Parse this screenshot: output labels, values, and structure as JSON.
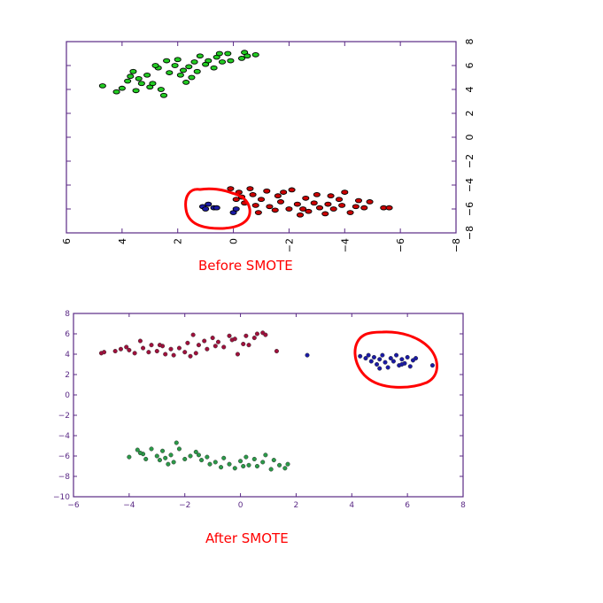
{
  "chart_data": [
    {
      "type": "scatter",
      "orientation": "rotated-90",
      "caption": "Before SMOTE",
      "title": "",
      "xlabel": "",
      "ylabel": "",
      "xlim": [
        6,
        -8
      ],
      "ylim": [
        -8,
        8
      ],
      "xticks": [
        6,
        4,
        2,
        0,
        -2,
        -4,
        -6,
        -8
      ],
      "yticks": [
        8,
        6,
        4,
        2,
        0,
        -2,
        -4,
        -6,
        -8
      ],
      "xtick_labels": [
        "6",
        "4",
        "2",
        "0",
        "−2",
        "−4",
        "−6",
        "−8"
      ],
      "ytick_labels": [
        "8",
        "6",
        "4",
        "2",
        "0",
        "−2",
        "−4",
        "−6",
        "−8"
      ],
      "grid": false,
      "axis_color": "#5b2a86",
      "series": [
        {
          "color": "#22cc22",
          "marker": "ellipse",
          "points": [
            [
              4.7,
              4.3
            ],
            [
              4.2,
              3.8
            ],
            [
              4.0,
              4.1
            ],
            [
              3.8,
              4.7
            ],
            [
              3.7,
              5.1
            ],
            [
              3.6,
              5.5
            ],
            [
              3.5,
              3.9
            ],
            [
              3.3,
              4.5
            ],
            [
              3.1,
              5.2
            ],
            [
              3.0,
              4.2
            ],
            [
              2.9,
              4.5
            ],
            [
              2.7,
              5.8
            ],
            [
              2.6,
              4.0
            ],
            [
              2.4,
              6.4
            ],
            [
              2.3,
              5.4
            ],
            [
              2.1,
              6.0
            ],
            [
              2.0,
              6.5
            ],
            [
              1.9,
              5.2
            ],
            [
              1.8,
              5.6
            ],
            [
              1.7,
              4.6
            ],
            [
              1.6,
              5.9
            ],
            [
              1.4,
              6.3
            ],
            [
              1.3,
              5.5
            ],
            [
              1.2,
              6.8
            ],
            [
              1.0,
              6.1
            ],
            [
              0.9,
              6.4
            ],
            [
              0.7,
              5.8
            ],
            [
              0.6,
              6.7
            ],
            [
              0.4,
              6.3
            ],
            [
              0.2,
              7.0
            ],
            [
              0.1,
              6.4
            ],
            [
              -0.3,
              6.6
            ],
            [
              -0.4,
              7.1
            ],
            [
              -0.5,
              6.8
            ],
            [
              -0.8,
              6.9
            ],
            [
              2.8,
              6.0
            ],
            [
              3.4,
              4.9
            ],
            [
              2.5,
              3.5
            ],
            [
              1.5,
              5.0
            ],
            [
              0.5,
              7.0
            ]
          ]
        },
        {
          "color": "#cc0000",
          "marker": "ellipse",
          "points": [
            [
              0.1,
              -4.3
            ],
            [
              -0.1,
              -5.2
            ],
            [
              -0.2,
              -4.6
            ],
            [
              -0.4,
              -5.5
            ],
            [
              -0.6,
              -4.3
            ],
            [
              -0.7,
              -4.8
            ],
            [
              -0.9,
              -6.3
            ],
            [
              -1.0,
              -5.2
            ],
            [
              -1.2,
              -4.5
            ],
            [
              -1.3,
              -5.8
            ],
            [
              -1.5,
              -6.1
            ],
            [
              -1.7,
              -5.4
            ],
            [
              -1.8,
              -4.6
            ],
            [
              -2.0,
              -6.0
            ],
            [
              -2.1,
              -4.4
            ],
            [
              -2.3,
              -5.6
            ],
            [
              -2.4,
              -6.5
            ],
            [
              -2.6,
              -5.1
            ],
            [
              -2.7,
              -6.2
            ],
            [
              -2.9,
              -5.5
            ],
            [
              -3.0,
              -4.8
            ],
            [
              -3.1,
              -5.9
            ],
            [
              -3.3,
              -6.4
            ],
            [
              -3.4,
              -5.6
            ],
            [
              -3.6,
              -6.0
            ],
            [
              -3.8,
              -5.2
            ],
            [
              -3.9,
              -5.7
            ],
            [
              -4.0,
              -4.6
            ],
            [
              -4.2,
              -6.3
            ],
            [
              -4.4,
              -5.8
            ],
            [
              -4.5,
              -5.3
            ],
            [
              -4.7,
              -5.9
            ],
            [
              -4.9,
              -5.4
            ],
            [
              -5.4,
              -5.9
            ],
            [
              -5.6,
              -5.9
            ],
            [
              -0.3,
              -5.0
            ],
            [
              -1.6,
              -4.9
            ],
            [
              -3.5,
              -4.9
            ],
            [
              -2.5,
              -6.0
            ],
            [
              -0.8,
              -5.7
            ]
          ]
        },
        {
          "color": "#1a1aa6",
          "marker": "ellipse",
          "points": [
            [
              1.1,
              -5.8
            ],
            [
              1.0,
              -6.0
            ],
            [
              0.9,
              -5.6
            ],
            [
              0.7,
              -5.9
            ],
            [
              0.6,
              -5.9
            ],
            [
              0.0,
              -6.3
            ],
            [
              -0.1,
              -6.0
            ]
          ]
        }
      ],
      "annotations": [
        {
          "type": "freehand-loop",
          "color": "#ff0000",
          "encloses": "blue series"
        }
      ]
    },
    {
      "type": "scatter",
      "caption": "After SMOTE",
      "title": "",
      "xlabel": "",
      "ylabel": "",
      "xlim": [
        -6,
        8
      ],
      "ylim": [
        -10,
        8
      ],
      "xticks": [
        -6,
        -4,
        -2,
        0,
        2,
        4,
        6,
        8
      ],
      "yticks": [
        -10,
        -8,
        -6,
        -4,
        -2,
        0,
        2,
        4,
        6,
        8
      ],
      "xtick_labels": [
        "−6",
        "−4",
        "−2",
        "0",
        "2",
        "4",
        "6",
        "8"
      ],
      "ytick_labels": [
        "−10",
        "−8",
        "−6",
        "−4",
        "−2",
        "0",
        "2",
        "4",
        "6",
        "8"
      ],
      "grid": false,
      "axis_color": "#5b2a86",
      "series": [
        {
          "color": "#a0103c",
          "marker": "circle",
          "points": [
            [
              -5.0,
              4.1
            ],
            [
              -4.9,
              4.2
            ],
            [
              -4.5,
              4.3
            ],
            [
              -4.3,
              4.5
            ],
            [
              -4.1,
              4.7
            ],
            [
              -4.0,
              4.4
            ],
            [
              -3.8,
              4.1
            ],
            [
              -3.6,
              5.3
            ],
            [
              -3.5,
              4.6
            ],
            [
              -3.3,
              4.2
            ],
            [
              -3.2,
              4.9
            ],
            [
              -3.0,
              4.3
            ],
            [
              -2.8,
              4.8
            ],
            [
              -2.7,
              4.0
            ],
            [
              -2.5,
              4.5
            ],
            [
              -2.4,
              3.9
            ],
            [
              -2.2,
              4.6
            ],
            [
              -2.0,
              4.2
            ],
            [
              -1.9,
              5.1
            ],
            [
              -1.8,
              3.8
            ],
            [
              -1.7,
              5.9
            ],
            [
              -1.5,
              4.9
            ],
            [
              -1.3,
              5.3
            ],
            [
              -1.2,
              4.5
            ],
            [
              -1.0,
              5.6
            ],
            [
              -0.9,
              4.8
            ],
            [
              -0.8,
              5.2
            ],
            [
              -0.6,
              4.7
            ],
            [
              -0.4,
              5.8
            ],
            [
              -0.3,
              5.4
            ],
            [
              -0.2,
              5.5
            ],
            [
              -0.1,
              4.0
            ],
            [
              0.1,
              5.0
            ],
            [
              0.2,
              5.8
            ],
            [
              0.3,
              4.9
            ],
            [
              0.5,
              5.6
            ],
            [
              0.6,
              6.0
            ],
            [
              0.8,
              6.1
            ],
            [
              0.9,
              5.9
            ],
            [
              1.3,
              4.3
            ],
            [
              -2.9,
              4.9
            ],
            [
              -1.6,
              4.1
            ]
          ]
        },
        {
          "color": "#2a9a48",
          "marker": "circle",
          "points": [
            [
              -4.0,
              -6.1
            ],
            [
              -3.7,
              -5.4
            ],
            [
              -3.5,
              -5.8
            ],
            [
              -3.4,
              -6.3
            ],
            [
              -3.2,
              -5.3
            ],
            [
              -3.0,
              -6.0
            ],
            [
              -2.9,
              -6.4
            ],
            [
              -2.8,
              -5.5
            ],
            [
              -2.6,
              -6.8
            ],
            [
              -2.5,
              -5.9
            ],
            [
              -2.4,
              -6.6
            ],
            [
              -2.3,
              -4.7
            ],
            [
              -2.2,
              -5.3
            ],
            [
              -2.0,
              -6.3
            ],
            [
              -1.8,
              -6.0
            ],
            [
              -1.6,
              -5.6
            ],
            [
              -1.4,
              -6.4
            ],
            [
              -1.2,
              -6.1
            ],
            [
              -1.1,
              -6.8
            ],
            [
              -0.9,
              -6.6
            ],
            [
              -0.7,
              -7.1
            ],
            [
              -0.6,
              -6.2
            ],
            [
              -0.4,
              -6.8
            ],
            [
              -0.2,
              -7.2
            ],
            [
              0.0,
              -6.5
            ],
            [
              0.2,
              -6.1
            ],
            [
              0.3,
              -6.9
            ],
            [
              0.5,
              -6.3
            ],
            [
              0.6,
              -7.0
            ],
            [
              0.8,
              -6.6
            ],
            [
              0.9,
              -5.9
            ],
            [
              1.1,
              -7.3
            ],
            [
              1.2,
              -6.4
            ],
            [
              1.4,
              -6.9
            ],
            [
              1.6,
              -7.2
            ],
            [
              1.7,
              -6.8
            ],
            [
              -3.6,
              -5.7
            ],
            [
              -2.7,
              -6.2
            ],
            [
              -1.5,
              -5.9
            ],
            [
              0.1,
              -7.0
            ]
          ]
        },
        {
          "color": "#1a1aa6",
          "marker": "circle",
          "points": [
            [
              2.4,
              3.9
            ],
            [
              4.3,
              3.8
            ],
            [
              4.5,
              3.6
            ],
            [
              4.6,
              3.9
            ],
            [
              4.7,
              3.3
            ],
            [
              4.8,
              3.7
            ],
            [
              4.9,
              3.0
            ],
            [
              5.0,
              3.5
            ],
            [
              5.1,
              3.9
            ],
            [
              5.2,
              3.2
            ],
            [
              5.3,
              2.7
            ],
            [
              5.4,
              3.6
            ],
            [
              5.5,
              3.3
            ],
            [
              5.6,
              3.9
            ],
            [
              5.7,
              2.9
            ],
            [
              5.8,
              3.5
            ],
            [
              5.9,
              3.1
            ],
            [
              6.0,
              3.7
            ],
            [
              6.1,
              2.8
            ],
            [
              6.2,
              3.4
            ],
            [
              5.0,
              2.6
            ],
            [
              5.8,
              3.0
            ],
            [
              6.3,
              3.6
            ],
            [
              6.9,
              2.9
            ]
          ]
        }
      ],
      "annotations": [
        {
          "type": "freehand-loop",
          "color": "#ff0000",
          "encloses": "blue series"
        }
      ]
    }
  ]
}
